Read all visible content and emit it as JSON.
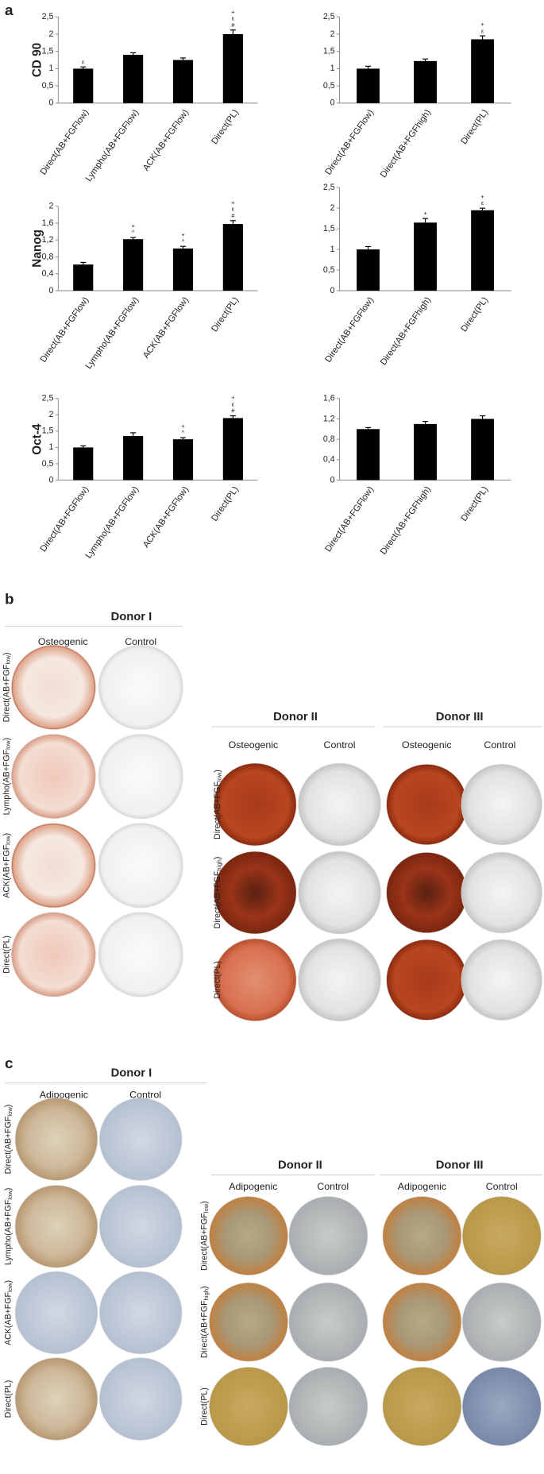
{
  "panel_a": {
    "label": "a"
  },
  "chart_data": [
    {
      "type": "bar",
      "ylabel": "CD 90",
      "color": "#000000",
      "categories": [
        "Direct(AB+FGFlow)",
        "Lympho(AB+FGFlow)",
        "ACK(AB+FGFlow)",
        "Direct(PL)"
      ],
      "values": [
        1,
        1.4,
        1.25,
        2
      ],
      "errors": [
        0.05,
        0.06,
        0.06,
        0.12
      ],
      "annotations": [
        [
          "ε"
        ],
        [],
        [],
        [
          "+",
          "ε",
          "#"
        ]
      ],
      "ylim": [
        0,
        2.5
      ],
      "yticks": [
        0,
        {
          "value": 0.5,
          "label": "0,5"
        },
        1,
        {
          "value": 1.5,
          "label": "1,5"
        },
        2,
        {
          "value": 2.5,
          "label": "2,5"
        }
      ]
    },
    {
      "type": "bar",
      "color": "#000000",
      "categories": [
        "Direct(AB+FGFlow)",
        "Direct(AB+FGFhigh)",
        "Direct(PL)"
      ],
      "values": [
        1,
        1.22,
        1.85
      ],
      "errors": [
        0.07,
        0.06,
        0.1
      ],
      "annotations": [
        [],
        [],
        [
          "+",
          "ε"
        ]
      ],
      "ylim": [
        0,
        2.5
      ],
      "yticks": [
        0,
        {
          "value": 0.5,
          "label": "0,5"
        },
        1,
        {
          "value": 1.5,
          "label": "1,5"
        },
        2,
        {
          "value": 2.5,
          "label": "2,5"
        }
      ]
    },
    {
      "type": "bar",
      "ylabel": "Nanog",
      "color": "#000000",
      "categories": [
        "Direct(AB+FGFlow)",
        "Lympho(AB+FGFlow)",
        "ACK(AB+FGFlow)",
        "Direct(PL)"
      ],
      "values": [
        0.62,
        1.22,
        1,
        1.58
      ],
      "errors": [
        0.05,
        0.04,
        0.05,
        0.08
      ],
      "annotations": [
        [],
        [
          "+",
          "^"
        ],
        [
          "+",
          "^"
        ],
        [
          "+",
          "ε",
          "#"
        ]
      ],
      "ylim": [
        0,
        2
      ],
      "yticks": [
        0,
        {
          "value": 0.4,
          "label": "0,4"
        },
        {
          "value": 0.8,
          "label": "0,8"
        },
        {
          "value": 1.2,
          "label": "1,2"
        },
        {
          "value": 1.6,
          "label": "1,6"
        },
        2
      ]
    },
    {
      "type": "bar",
      "color": "#000000",
      "categories": [
        "Direct(AB+FGFlow)",
        "Direct(AB+FGFhigh)",
        "Direct(PL)"
      ],
      "values": [
        1,
        1.65,
        1.95
      ],
      "errors": [
        0.07,
        0.1,
        0.05
      ],
      "annotations": [
        [],
        [
          "+"
        ],
        [
          "+",
          "ε"
        ]
      ],
      "ylim": [
        0,
        2.5
      ],
      "yticks": [
        0,
        {
          "value": 0.5,
          "label": "0,5"
        },
        1,
        {
          "value": 1.5,
          "label": "1,5"
        },
        2,
        {
          "value": 2.5,
          "label": "2,5"
        }
      ]
    },
    {
      "type": "bar",
      "ylabel": "Oct-4",
      "color": "#000000",
      "categories": [
        "Direct(AB+FGFlow)",
        "Lympho(AB+FGFlow)",
        "ACK(AB+FGFlow)",
        "Direct(PL)"
      ],
      "values": [
        1,
        1.35,
        1.25,
        1.9
      ],
      "errors": [
        0.05,
        0.1,
        0.05,
        0.07
      ],
      "annotations": [
        [],
        [],
        [
          "+",
          "^"
        ],
        [
          "+",
          "ε",
          "#"
        ]
      ],
      "ylim": [
        0,
        2.5
      ],
      "yticks": [
        0,
        {
          "value": 0.5,
          "label": "0,5"
        },
        1,
        {
          "value": 1.5,
          "label": "1,5"
        },
        2,
        {
          "value": 2.5,
          "label": "2,5"
        }
      ]
    },
    {
      "type": "bar",
      "color": "#000000",
      "categories": [
        "Direct(AB+FGFlow)",
        "Direct(AB+FGFhigh)",
        "Direct(PL)"
      ],
      "values": [
        1,
        1.1,
        1.2
      ],
      "errors": [
        0.03,
        0.05,
        0.06
      ],
      "annotations": [
        [],
        [],
        []
      ],
      "ylim": [
        0,
        1.6
      ],
      "yticks": [
        0,
        {
          "value": 0.4,
          "label": "0,4"
        },
        {
          "value": 0.8,
          "label": "0,8"
        },
        {
          "value": 1.2,
          "label": "1,2"
        },
        {
          "value": 1.6,
          "label": "1,6"
        }
      ]
    }
  ],
  "panel_b": {
    "label": "b",
    "groups": [
      {
        "title": "Donor I",
        "columns": [
          "Osteogenic",
          "Control"
        ],
        "rows": [
          {
            "prefix": "Direct(AB+FGF",
            "sub": "low",
            "suffix": ")"
          },
          {
            "prefix": "Lympho(AB+FGF",
            "sub": "low",
            "suffix": ")"
          },
          {
            "prefix": "ACK(AB+FGF",
            "sub": "low",
            "suffix": ")"
          },
          {
            "prefix": "Direct(PL)"
          }
        ]
      },
      {
        "title": "Donor II",
        "columns": [
          "Osteogenic",
          "Control"
        ],
        "rows": [
          {
            "prefix": "Direct(AB+FGF",
            "sub": "low",
            "suffix": ")"
          },
          {
            "prefix": "Direct(AB+FGF",
            "sub": "high",
            "suffix": ")"
          },
          {
            "prefix": "Direct(PL)"
          }
        ]
      },
      {
        "title": "Donor III",
        "columns": [
          "Osteogenic",
          "Control"
        ]
      }
    ]
  },
  "panel_c": {
    "label": "c",
    "groups": [
      {
        "title": "Donor I",
        "columns": [
          "Adipogenic",
          "Control"
        ],
        "rows": [
          {
            "prefix": "Direct(AB+FGF",
            "sub": "low",
            "suffix": ")"
          },
          {
            "prefix": "Lympho(AB+FGF",
            "sub": "low",
            "suffix": ")"
          },
          {
            "prefix": "ACK(AB+FGF",
            "sub": "low",
            "suffix": ")"
          },
          {
            "prefix": "Direct(PL)"
          }
        ]
      },
      {
        "title": "Donor II",
        "columns": [
          "Adipogenic",
          "Control"
        ],
        "rows": [
          {
            "prefix": "Direct(AB+FGF",
            "sub": "low",
            "suffix": ")"
          },
          {
            "prefix": "Direct(AB+FGF",
            "sub": "high",
            "suffix": ")"
          },
          {
            "prefix": "Direct(PL)"
          }
        ]
      },
      {
        "title": "Donor III",
        "columns": [
          "Adipogenic",
          "Control"
        ]
      }
    ]
  }
}
